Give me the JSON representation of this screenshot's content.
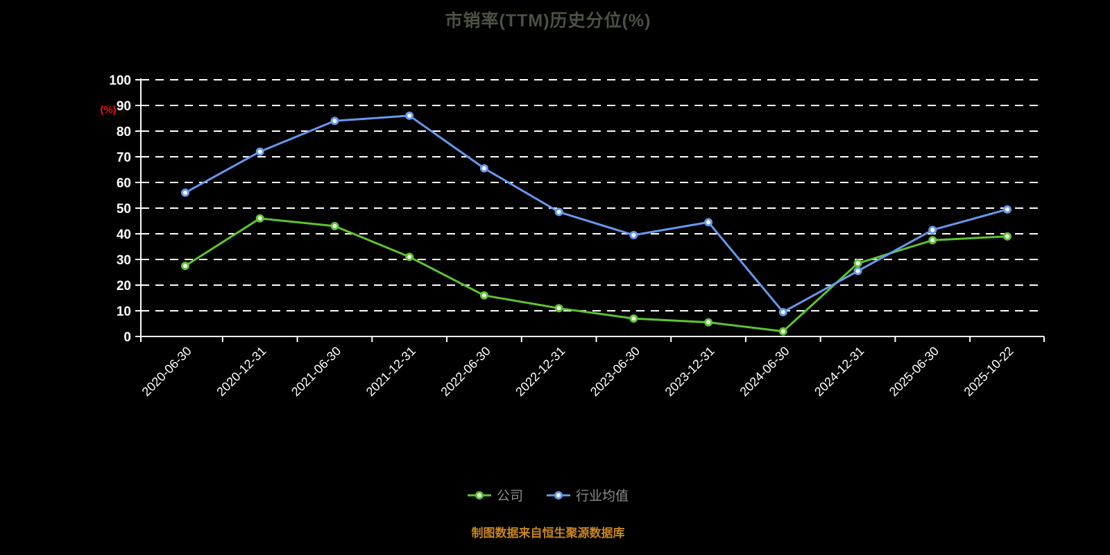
{
  "chart_data": {
    "type": "line",
    "title": "市销率(TTM)历史分位(%)",
    "ylabel": "(%)",
    "ylabel_color": "#ee1111",
    "categories": [
      "2020-06-30",
      "2020-12-31",
      "2021-06-30",
      "2021-12-31",
      "2022-06-30",
      "2022-12-31",
      "2023-06-30",
      "2023-12-31",
      "2024-06-30",
      "2024-12-31",
      "2025-06-30",
      "2025-10-22"
    ],
    "series": [
      {
        "name": "公司",
        "color": "#5ec431",
        "values": [
          27.5,
          46,
          43,
          31,
          16,
          11,
          7,
          5.5,
          2,
          28.5,
          37.5,
          39
        ]
      },
      {
        "name": "行业均值",
        "color": "#6699ee",
        "values": [
          56,
          72,
          84,
          86,
          65.5,
          48.5,
          39.5,
          44.5,
          9.5,
          25.5,
          41.5,
          49.5
        ]
      }
    ],
    "ylim": [
      0,
      100
    ],
    "yticks": [
      0,
      10,
      20,
      30,
      40,
      50,
      60,
      70,
      80,
      90,
      100
    ],
    "grid": true,
    "legend_position": "bottom"
  },
  "footer": {
    "text": "制图数据来自恒生聚源数据库"
  },
  "colors": {
    "background": "#000000",
    "axis": "#ffffff",
    "grid": "#ffffff",
    "tick_label": "#ffffff",
    "legend_text": "#8c8c8c",
    "footer_text": "#c9861c",
    "title_text": "#4b5244"
  }
}
